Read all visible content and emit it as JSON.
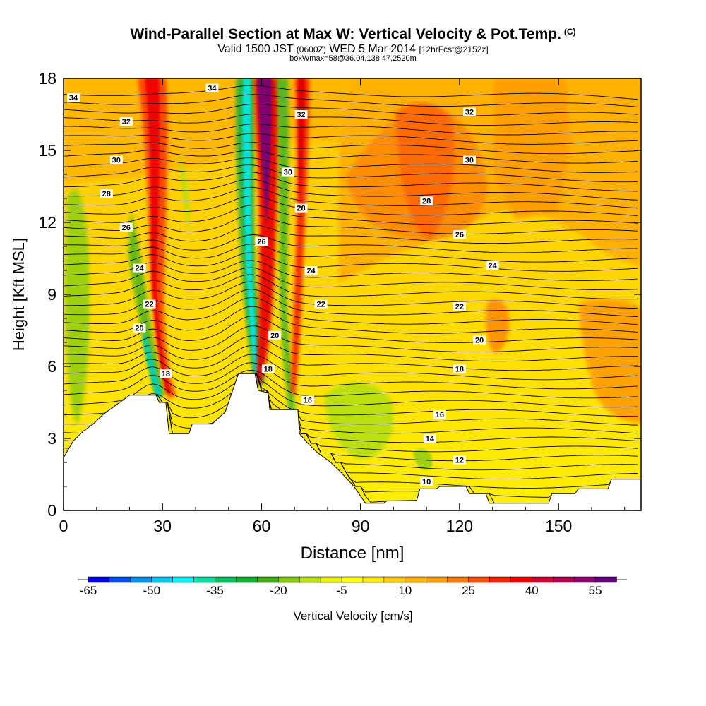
{
  "title": {
    "main": "Wind-Parallel Section at Max W: Vertical Velocity & Pot.Temp.",
    "copyright": "(C)",
    "valid_prefix": "Valid 1500 JST",
    "valid_utc": "(0600Z)",
    "valid_date": "WED 5 Mar 2014",
    "forecast": "[12hrFcst@2152z]",
    "box": "boxWmax=58@36.04,138.47,2520m"
  },
  "chart_data": {
    "type": "heatmap",
    "xlabel": "Distance [nm]",
    "ylabel": "Height [Kft MSL]",
    "xlim": [
      0,
      175
    ],
    "ylim": [
      0,
      18
    ],
    "x_ticks": [
      0,
      30,
      60,
      90,
      120,
      150
    ],
    "y_ticks": [
      0,
      3,
      6,
      9,
      12,
      15,
      18
    ],
    "colorbar": {
      "title": "Vertical Velocity [cm/s]",
      "labels": [
        "-65",
        "-50",
        "-35",
        "-20",
        "-5",
        "10",
        "25",
        "40",
        "55"
      ],
      "colors": [
        "#0000f0",
        "#0050f0",
        "#0090f0",
        "#00c8f0",
        "#00f0f0",
        "#00e0a0",
        "#00c060",
        "#10b030",
        "#40b010",
        "#80c810",
        "#b8e010",
        "#e8f000",
        "#ffff00",
        "#ffe800",
        "#ffc800",
        "#ffb000",
        "#ff9800",
        "#ff7800",
        "#ff5000",
        "#ff2000",
        "#f00000",
        "#d00030",
        "#b00050",
        "#900070",
        "#600080"
      ]
    },
    "isentrope_labels": [
      {
        "x": 3,
        "y": 17.2,
        "text": "34"
      },
      {
        "x": 45,
        "y": 17.6,
        "text": "34"
      },
      {
        "x": 19,
        "y": 16.2,
        "text": "32"
      },
      {
        "x": 72,
        "y": 16.5,
        "text": "32"
      },
      {
        "x": 123,
        "y": 16.6,
        "text": "32"
      },
      {
        "x": 16,
        "y": 14.6,
        "text": "30"
      },
      {
        "x": 68,
        "y": 14.1,
        "text": "30"
      },
      {
        "x": 123,
        "y": 14.6,
        "text": "30"
      },
      {
        "x": 13,
        "y": 13.2,
        "text": "28"
      },
      {
        "x": 72,
        "y": 12.6,
        "text": "28"
      },
      {
        "x": 110,
        "y": 12.9,
        "text": "28"
      },
      {
        "x": 19,
        "y": 11.8,
        "text": "26"
      },
      {
        "x": 60,
        "y": 11.2,
        "text": "26"
      },
      {
        "x": 120,
        "y": 11.5,
        "text": "26"
      },
      {
        "x": 23,
        "y": 10.1,
        "text": "24"
      },
      {
        "x": 75,
        "y": 10.0,
        "text": "24"
      },
      {
        "x": 130,
        "y": 10.2,
        "text": "24"
      },
      {
        "x": 26,
        "y": 8.6,
        "text": "22"
      },
      {
        "x": 78,
        "y": 8.6,
        "text": "22"
      },
      {
        "x": 120,
        "y": 8.5,
        "text": "22"
      },
      {
        "x": 23,
        "y": 7.6,
        "text": "20"
      },
      {
        "x": 64,
        "y": 7.3,
        "text": "20"
      },
      {
        "x": 126,
        "y": 7.1,
        "text": "20"
      },
      {
        "x": 31,
        "y": 5.7,
        "text": "18"
      },
      {
        "x": 62,
        "y": 5.9,
        "text": "18"
      },
      {
        "x": 120,
        "y": 5.9,
        "text": "18"
      },
      {
        "x": 74,
        "y": 4.6,
        "text": "16"
      },
      {
        "x": 114,
        "y": 4.0,
        "text": "16"
      },
      {
        "x": 111,
        "y": 3.0,
        "text": "14"
      },
      {
        "x": 120,
        "y": 2.1,
        "text": "12"
      },
      {
        "x": 110,
        "y": 1.2,
        "text": "10"
      }
    ],
    "terrain_profile": [
      [
        0,
        2.2
      ],
      [
        3,
        2.9
      ],
      [
        6,
        3.3
      ],
      [
        9,
        3.6
      ],
      [
        12,
        4.0
      ],
      [
        15,
        4.3
      ],
      [
        17,
        4.5
      ],
      [
        20,
        4.8
      ],
      [
        28,
        4.8
      ],
      [
        29,
        4.5
      ],
      [
        31,
        4.5
      ],
      [
        32,
        3.2
      ],
      [
        38,
        3.2
      ],
      [
        39,
        3.6
      ],
      [
        45,
        3.6
      ],
      [
        49,
        4.1
      ],
      [
        53,
        5.7
      ],
      [
        58,
        5.7
      ],
      [
        59,
        5.0
      ],
      [
        62,
        4.9
      ],
      [
        62.5,
        4.2
      ],
      [
        71,
        4.2
      ],
      [
        71.5,
        3.2
      ],
      [
        74,
        2.8
      ],
      [
        77,
        2.4
      ],
      [
        81,
        2.0
      ],
      [
        84,
        1.6
      ],
      [
        86,
        1.3
      ],
      [
        88,
        1.0
      ],
      [
        90,
        0.6
      ],
      [
        91.5,
        0.3
      ],
      [
        97,
        0.3
      ],
      [
        98,
        0.4
      ],
      [
        107,
        0.4
      ],
      [
        108,
        0.9
      ],
      [
        113,
        0.9
      ],
      [
        114,
        1.0
      ],
      [
        122,
        1.0
      ],
      [
        123,
        0.7
      ],
      [
        128,
        0.7
      ],
      [
        129,
        0.3
      ],
      [
        140,
        0.3
      ],
      [
        147,
        0.3
      ],
      [
        148,
        0.7
      ],
      [
        155,
        0.7
      ],
      [
        156,
        0.9
      ],
      [
        165,
        0.9
      ],
      [
        166,
        1.3
      ],
      [
        175,
        1.3
      ]
    ]
  }
}
